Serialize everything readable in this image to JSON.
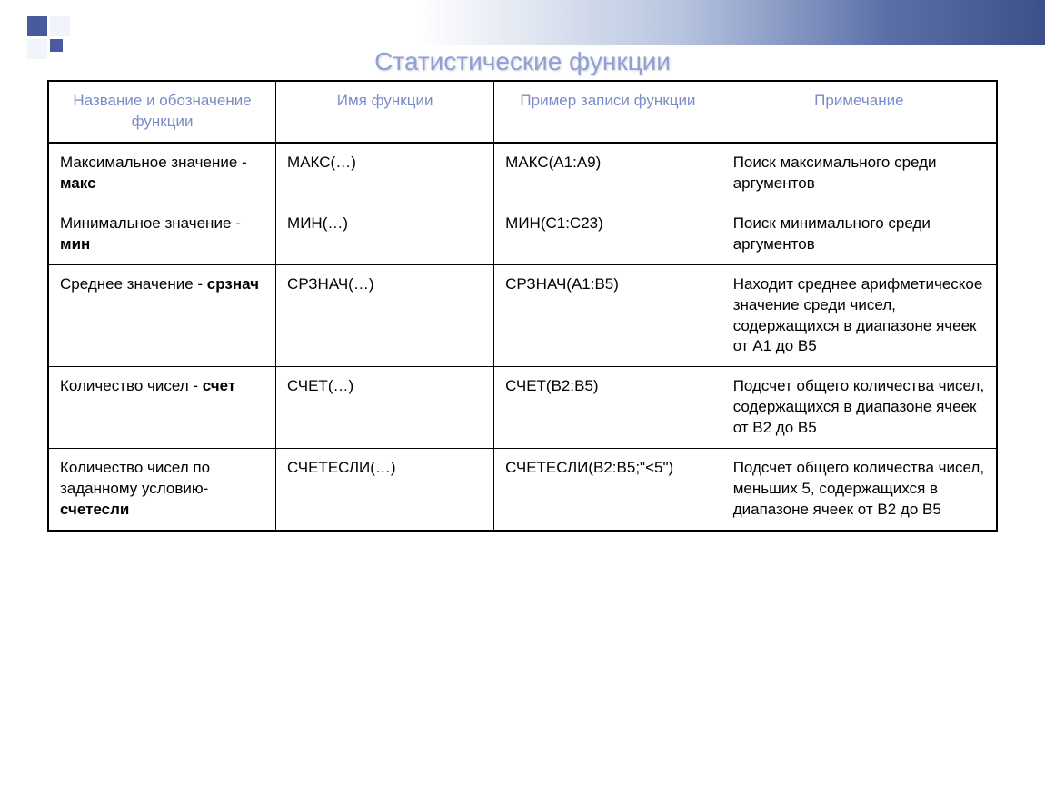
{
  "title": "Статистические функции",
  "colors": {
    "heading_text": "#7a8cc8",
    "title_text": "#8fa0d3",
    "body_text": "#000000",
    "border": "#000000",
    "gradient_start": "#ffffff",
    "gradient_end": "#3d4f88",
    "accent_square": "#4a5a9e"
  },
  "table": {
    "columns": [
      "Название и обозначение функции",
      "Имя функции",
      "Пример записи функции",
      "Примечание"
    ],
    "column_widths_pct": [
      24,
      23,
      24,
      29
    ],
    "rows": [
      {
        "name_prefix": "Максимальное значение - ",
        "name_bold": "макс",
        "func": "МАКС(…)",
        "example": "МАКС(А1:А9)",
        "note": "Поиск максимального среди аргументов"
      },
      {
        "name_prefix": "Минимальное значение - ",
        "name_bold": "мин",
        "func": "МИН(…)",
        "example": "МИН(С1:С23)",
        "note": "Поиск минимального среди аргументов"
      },
      {
        "name_prefix": "Среднее значение - ",
        "name_bold": "срзнач",
        "func": "СРЗНАЧ(…)",
        "example": "СРЗНАЧ(А1:В5)",
        "note": "Находит среднее арифметическое значение среди чисел, содержащихся в диапазоне ячеек от А1 до В5"
      },
      {
        "name_prefix": "Количество чисел - ",
        "name_bold": "счет",
        "func": "СЧЕТ(…)",
        "example": "СЧЕТ(В2:В5)",
        "note": "Подсчет общего количества чисел, содержащихся в диапазоне ячеек от В2 до В5"
      },
      {
        "name_prefix": "Количество чисел по заданному условию- ",
        "name_bold": "счетесли",
        "func": "СЧЕТЕСЛИ(…)",
        "example": "СЧЕТЕСЛИ(В2:В5;\"<5\")",
        "note": "Подсчет общего количества чисел, меньших 5, содержащихся в диапазоне ячеек от В2 до В5"
      }
    ]
  },
  "typography": {
    "title_fontsize": 28,
    "header_fontsize": 17,
    "cell_fontsize": 17
  }
}
